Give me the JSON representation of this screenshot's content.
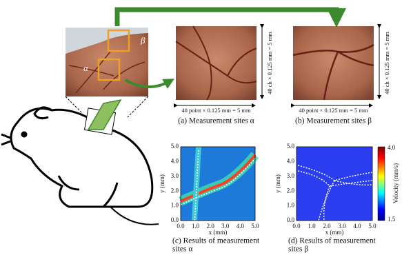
{
  "photo": {
    "labels": [
      "β",
      "α"
    ]
  },
  "sites": [
    {
      "width_label": "40 point × 0.125 mm = 5 mm",
      "height_label": "40 ch × 0.125 mm = 5 mm",
      "caption": "(a) Measurement sites α"
    },
    {
      "width_label": "40 point × 0.125 mm = 5 mm",
      "height_label": "40 ch × 0.125 mm = 5 mm",
      "caption": "(b) Measurement sites β"
    }
  ],
  "results": [
    {
      "caption": [
        "(c) Results of measurement",
        "sites α"
      ],
      "x_label": "x (mm)",
      "y_label": "y (mm)",
      "xticks": [
        "0.0",
        "1.0",
        "2.0",
        "3.0",
        "4.0",
        "5.0"
      ],
      "yticks": [
        "0.0",
        "1.0",
        "2.0",
        "3.0",
        "4.0",
        "5.0"
      ]
    },
    {
      "caption": [
        "(d) Results of measurement",
        "sites β"
      ],
      "x_label": "x (mm)",
      "y_label": "y (mm)",
      "xticks": [
        "0.0",
        "1.0",
        "2.0",
        "3.0",
        "4.0",
        "5.0"
      ],
      "yticks": [
        "0.0",
        "1.0",
        "2.0",
        "3.0",
        "4.0",
        "5.0"
      ]
    }
  ],
  "colorbar": {
    "label": "Velocity (mm/s)",
    "max": "4.0",
    "min": "1.5"
  }
}
